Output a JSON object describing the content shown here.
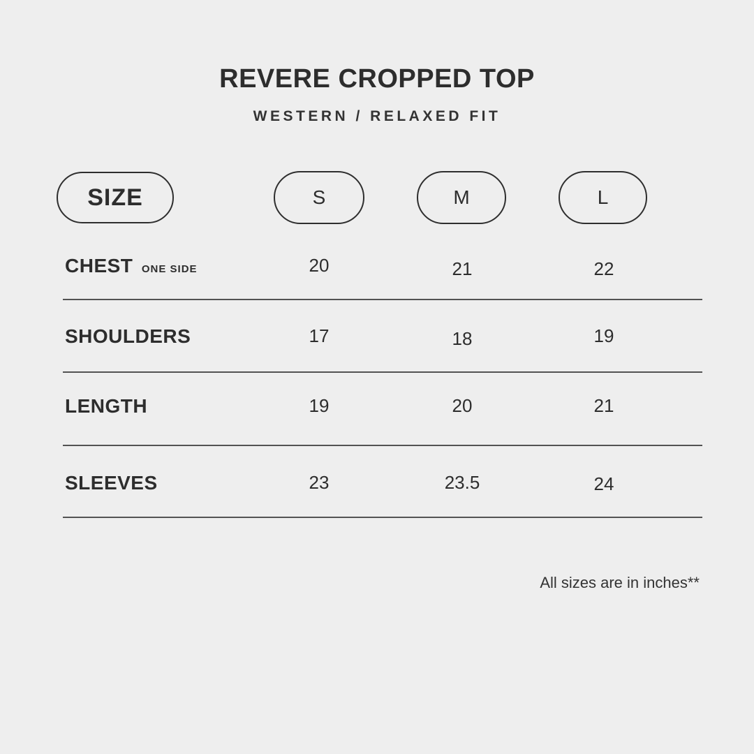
{
  "header": {
    "title": "REVERE CROPPED TOP",
    "subtitle": "WESTERN / RELAXED FIT"
  },
  "table": {
    "size_label": "SIZE",
    "columns": [
      "S",
      "M",
      "L"
    ],
    "rows": [
      {
        "label": "CHEST",
        "sublabel": "ONE SIDE",
        "values": [
          "20",
          "21",
          "22"
        ]
      },
      {
        "label": "SHOULDERS",
        "sublabel": "",
        "values": [
          "17",
          "18",
          "19"
        ]
      },
      {
        "label": "LENGTH",
        "sublabel": "",
        "values": [
          "19",
          "20",
          "21"
        ]
      },
      {
        "label": "SLEEVES",
        "sublabel": "",
        "values": [
          "23",
          "23.5",
          "24"
        ]
      }
    ],
    "units_note": "All sizes are in inches**"
  },
  "colors": {
    "background": "#eeeeee",
    "text": "#2d2d2d",
    "separator": "#525252",
    "pill_border": "#2e2e2e"
  }
}
